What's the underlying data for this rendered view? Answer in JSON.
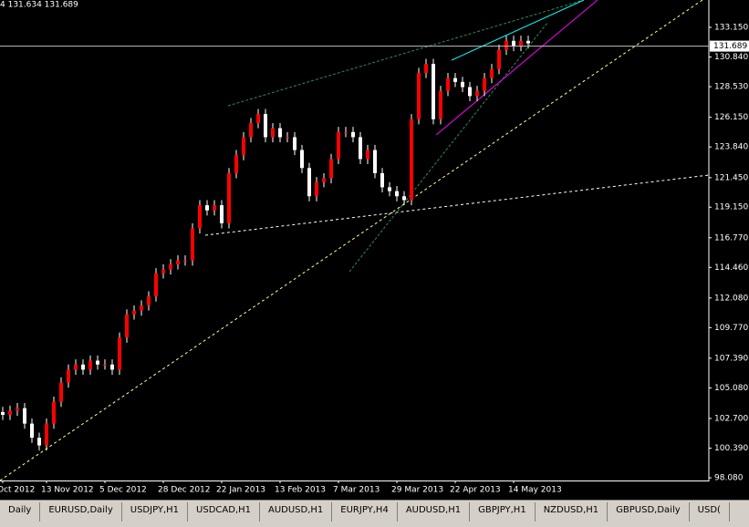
{
  "header": {
    "quote": "4 131.634 131.689"
  },
  "chart_data": {
    "type": "candlestick",
    "up_color": "#ff0000",
    "down_color": "#ffffff",
    "wick_color": "#ffffff",
    "categories": [
      "Oct 2012",
      null,
      null,
      null,
      null,
      null,
      "13 Nov 2012",
      null,
      null,
      null,
      null,
      null,
      null,
      null,
      "5 Dec 2012",
      null,
      null,
      null,
      null,
      null,
      null,
      null,
      "28 Dec 2012",
      null,
      null,
      null,
      null,
      null,
      null,
      null,
      "22 Jan 2013",
      null,
      null,
      null,
      null,
      null,
      null,
      null,
      "13 Feb 2013",
      null,
      null,
      null,
      null,
      null,
      null,
      null,
      "7 Mar 2013",
      null,
      null,
      null,
      null,
      null,
      null,
      null,
      "29 Mar 2013",
      null,
      null,
      null,
      null,
      null,
      null,
      null,
      "22 Apr 2013",
      null,
      null,
      null,
      null,
      null,
      null,
      null,
      "14 May 2013",
      null,
      null
    ],
    "open": [
      103.2,
      102.98,
      103.3,
      103.5,
      102.3,
      101.2,
      100.6,
      102.3,
      104.0,
      105.5,
      106.5,
      106.9,
      106.5,
      107.2,
      106.9,
      106.9,
      106.5,
      109.0,
      110.8,
      111.1,
      111.5,
      112.2,
      114.0,
      114.3,
      114.7,
      115.0,
      115.0,
      117.5,
      119.3,
      118.9,
      119.3,
      117.9,
      121.8,
      123.2,
      124.6,
      125.7,
      126.4,
      124.6,
      125.3,
      124.6,
      124.6,
      123.6,
      122.2,
      120.0,
      121.1,
      121.4,
      122.9,
      125.0,
      125.0,
      124.6,
      122.9,
      123.6,
      121.8,
      120.7,
      120.4,
      120.0,
      119.7,
      126.0,
      129.6,
      130.3,
      126.0,
      128.2,
      129.2,
      128.9,
      128.5,
      127.8,
      128.2,
      129.2,
      129.9,
      131.4,
      132.1,
      131.7,
      132.1
    ],
    "high": [
      103.6,
      103.7,
      103.9,
      103.9,
      102.7,
      101.6,
      102.7,
      104.4,
      105.9,
      106.9,
      107.3,
      107.3,
      107.6,
      107.6,
      107.3,
      107.3,
      109.4,
      111.2,
      111.5,
      111.9,
      112.6,
      114.4,
      114.7,
      115.1,
      115.4,
      115.4,
      117.9,
      119.7,
      119.7,
      119.7,
      119.7,
      122.2,
      123.6,
      125.0,
      126.1,
      126.8,
      126.8,
      125.7,
      125.7,
      125.0,
      125.0,
      124.0,
      122.6,
      121.5,
      121.8,
      123.3,
      125.4,
      125.4,
      125.4,
      125.0,
      124.0,
      124.0,
      122.2,
      121.1,
      120.8,
      120.4,
      126.4,
      130.0,
      130.7,
      130.7,
      128.6,
      129.6,
      129.6,
      129.3,
      128.9,
      128.6,
      129.6,
      130.3,
      131.8,
      132.5,
      132.5,
      132.5,
      132.5
    ],
    "low": [
      102.58,
      102.58,
      102.9,
      101.9,
      100.8,
      100.2,
      100.2,
      101.9,
      103.6,
      105.1,
      106.1,
      106.1,
      106.1,
      106.5,
      106.5,
      106.1,
      106.1,
      108.6,
      110.4,
      110.7,
      111.1,
      111.8,
      113.6,
      113.9,
      114.3,
      114.6,
      114.6,
      117.1,
      118.5,
      118.5,
      117.5,
      117.5,
      121.4,
      122.8,
      124.2,
      125.3,
      124.2,
      124.2,
      124.2,
      124.2,
      123.2,
      121.8,
      119.6,
      119.6,
      120.7,
      121.0,
      122.5,
      124.6,
      124.2,
      122.5,
      122.5,
      121.4,
      120.3,
      120.0,
      119.6,
      119.3,
      119.3,
      125.6,
      129.2,
      125.6,
      125.6,
      127.8,
      128.5,
      128.1,
      127.4,
      127.4,
      127.8,
      128.8,
      129.5,
      131.0,
      131.3,
      131.3,
      131.5
    ],
    "close": [
      102.98,
      103.3,
      103.5,
      102.3,
      101.2,
      100.6,
      102.3,
      104.0,
      105.5,
      106.5,
      106.9,
      106.5,
      107.2,
      106.9,
      106.9,
      106.5,
      109.0,
      110.8,
      111.1,
      111.5,
      112.2,
      114.0,
      114.3,
      114.7,
      115.0,
      115.0,
      117.5,
      119.3,
      118.9,
      119.3,
      117.9,
      121.8,
      123.2,
      124.6,
      125.7,
      126.4,
      124.6,
      125.3,
      124.6,
      124.6,
      123.6,
      122.2,
      120.0,
      121.1,
      121.4,
      122.9,
      125.0,
      125.0,
      124.6,
      122.9,
      123.6,
      121.8,
      120.7,
      120.4,
      120.0,
      119.7,
      126.0,
      129.6,
      130.3,
      126.0,
      128.2,
      129.2,
      128.9,
      128.5,
      127.8,
      128.2,
      129.2,
      129.9,
      131.4,
      132.1,
      131.7,
      132.1,
      131.9
    ],
    "ylim": [
      97.87,
      135.28
    ],
    "yticks": [
      {
        "value": 98.08,
        "label": "98.080"
      },
      {
        "value": 100.39,
        "label": "100.390"
      },
      {
        "value": 102.7,
        "label": "102.700"
      },
      {
        "value": 105.08,
        "label": "105.080"
      },
      {
        "value": 107.39,
        "label": "107.390"
      },
      {
        "value": 109.77,
        "label": "109.770"
      },
      {
        "value": 112.08,
        "label": "112.080"
      },
      {
        "value": 114.46,
        "label": "114.460"
      },
      {
        "value": 116.77,
        "label": "116.770"
      },
      {
        "value": 119.15,
        "label": "119.150"
      },
      {
        "value": 121.45,
        "label": "121.450"
      },
      {
        "value": 123.84,
        "label": "123.840"
      },
      {
        "value": 126.15,
        "label": "126.150"
      },
      {
        "value": 128.53,
        "label": "128.530"
      },
      {
        "value": 130.84,
        "label": "130.840"
      },
      {
        "value": 133.15,
        "label": "133.150"
      }
    ],
    "current_price": 131.689,
    "grid": false
  },
  "tabs": [
    "Daily",
    "EURUSD,Daily",
    "USDJPY,H1",
    "USDCAD,H1",
    "AUDUSD,H1",
    "EURJPY,H4",
    "AUDUSD,H1",
    "GBPJPY,H1",
    "NZDUSD,H1",
    "GBPUSD,Daily",
    "USD("
  ]
}
